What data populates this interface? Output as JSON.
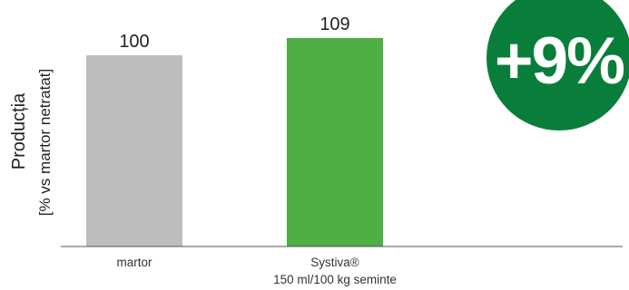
{
  "chart_data": {
    "type": "bar",
    "categories": [
      "martor",
      "Systiva®"
    ],
    "category_sublabels": [
      "",
      "150 ml/100 kg seminte"
    ],
    "values": [
      100,
      109
    ],
    "value_labels": [
      "100",
      "109"
    ],
    "ylabel": "Producția",
    "ylabel_sub": "[% vs martor netratat]",
    "colors": [
      "#bdbdbd",
      "#4daf44"
    ],
    "grid": false
  },
  "badge": {
    "text": "+9%",
    "color": "#087e3a"
  }
}
